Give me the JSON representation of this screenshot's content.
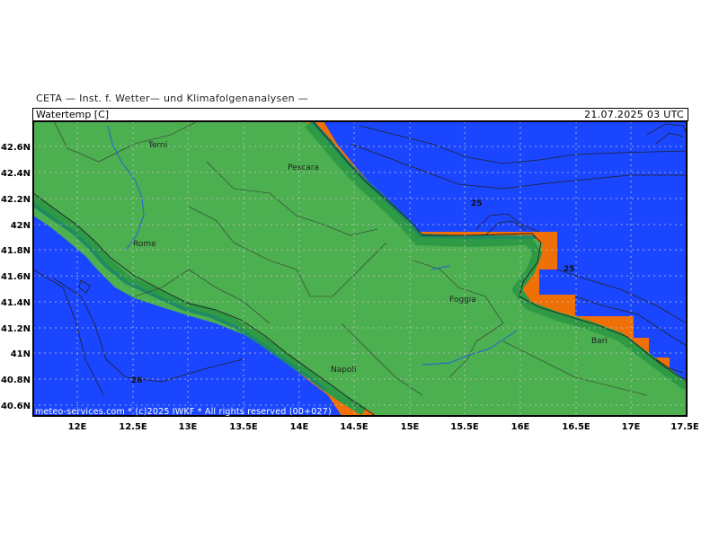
{
  "header": {
    "institute": "CETA — Inst. f. Wetter— und Klimafolgenanalysen —",
    "parameter": "Watertemp [C]",
    "datetime": "21.07.2025 03 UTC"
  },
  "footer": "meteo-services.com * (c)2025 IWKF * All rights reserved (00+027)",
  "map": {
    "lon_range": [
      11.6,
      17.5
    ],
    "lat_range": [
      40.5,
      42.8
    ],
    "lon_ticks": [
      "12E",
      "12.5E",
      "13E",
      "13.5E",
      "14E",
      "14.5E",
      "15E",
      "15.5E",
      "16E",
      "16.5E",
      "17E",
      "17.5E"
    ],
    "lat_ticks": [
      "42.6N",
      "42.4N",
      "42.2N",
      "42N",
      "41.8N",
      "41.6N",
      "41.4N",
      "41.2N",
      "41N",
      "40.8N",
      "40.6N"
    ],
    "cities": [
      {
        "name": "Terni",
        "lon": 12.65,
        "lat": 42.56
      },
      {
        "name": "Pescara",
        "lon": 14.2,
        "lat": 42.46
      },
      {
        "name": "Rome",
        "lon": 12.6,
        "lat": 41.89
      },
      {
        "name": "Foggia",
        "lon": 15.55,
        "lat": 41.46
      },
      {
        "name": "Napoli",
        "lon": 14.25,
        "lat": 40.86
      },
      {
        "name": "Bari",
        "lon": 16.87,
        "lat": 41.1
      }
    ],
    "contour_labels": [
      {
        "text": "25",
        "lon": 15.6,
        "lat": 42.17
      },
      {
        "text": "25",
        "lon": 16.45,
        "lat": 41.66
      },
      {
        "text": "26",
        "lon": 12.55,
        "lat": 40.78
      }
    ],
    "colors": {
      "sea": "#f07008",
      "sea_warm": "#ff9a10",
      "land": "#4caf50",
      "coast_band": "#2e9a45",
      "coast_band2": "#1f8a63",
      "cold": "#1a46ff",
      "cold_mid": "#1a72ff"
    }
  }
}
